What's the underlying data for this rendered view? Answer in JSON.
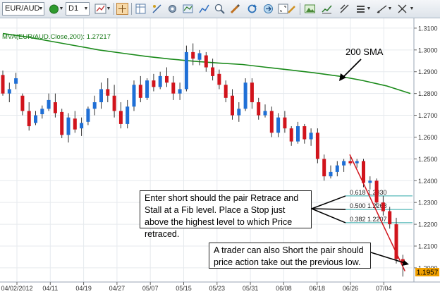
{
  "toolbar": {
    "symbol": "EUR/AUD",
    "timeframe": "D1",
    "icons": [
      "dropdown-icon",
      "status-dot-icon",
      "dropdown-icon",
      "dropdown-icon",
      "line-chart-icon",
      "dropdown-icon",
      "crosshair-icon",
      "table-icon",
      "draw-icon",
      "settings-icon",
      "overlay-icon",
      "reload-icon",
      "pencil-icon",
      "image-icon",
      "indicator-icon",
      "menu-icon",
      "trend-icon",
      "dropdown-icon"
    ]
  },
  "chart_data": {
    "type": "candlestick",
    "indicator_label": "MVA(EUR/AUD.Close,200): 1.27217",
    "y_ticks": [
      "1.3100",
      "1.3000",
      "1.2900",
      "1.2800",
      "1.2700",
      "1.2600",
      "1.2500",
      "1.2400",
      "1.2300",
      "1.2200",
      "1.2100",
      "1.2000"
    ],
    "ylim": [
      1.1935,
      1.3145
    ],
    "x_ticks": [
      "04/02/2012",
      "04/11",
      "04/19",
      "04/27",
      "05/07",
      "05/15",
      "05/23",
      "05/31",
      "06/08",
      "06/18",
      "06/26",
      "07/04"
    ],
    "current_price_label": "1.1957",
    "colors": {
      "up": "#1f6fd6",
      "down": "#d1141c",
      "sma": "#1a8a1a",
      "fib": "#2ca8a8",
      "trend": "#d1141c",
      "grid": "#e6eaee",
      "price_tag": "#f0a000"
    },
    "candles": [
      {
        "o": 1.2885,
        "h": 1.2905,
        "l": 1.279,
        "c": 1.28
      },
      {
        "o": 1.28,
        "h": 1.285,
        "l": 1.276,
        "c": 1.282
      },
      {
        "o": 1.2845,
        "h": 1.2895,
        "l": 1.282,
        "c": 1.287
      },
      {
        "o": 1.279,
        "h": 1.28,
        "l": 1.27,
        "c": 1.272
      },
      {
        "o": 1.272,
        "h": 1.276,
        "l": 1.263,
        "c": 1.265
      },
      {
        "o": 1.2665,
        "h": 1.272,
        "l": 1.2655,
        "c": 1.27
      },
      {
        "o": 1.2705,
        "h": 1.2745,
        "l": 1.2685,
        "c": 1.273
      },
      {
        "o": 1.273,
        "h": 1.28,
        "l": 1.272,
        "c": 1.277
      },
      {
        "o": 1.276,
        "h": 1.28,
        "l": 1.269,
        "c": 1.271
      },
      {
        "o": 1.2715,
        "h": 1.273,
        "l": 1.2595,
        "c": 1.261
      },
      {
        "o": 1.261,
        "h": 1.271,
        "l": 1.2575,
        "c": 1.269
      },
      {
        "o": 1.2685,
        "h": 1.272,
        "l": 1.262,
        "c": 1.2635
      },
      {
        "o": 1.264,
        "h": 1.269,
        "l": 1.2605,
        "c": 1.2665
      },
      {
        "o": 1.267,
        "h": 1.274,
        "l": 1.2655,
        "c": 1.273
      },
      {
        "o": 1.273,
        "h": 1.279,
        "l": 1.27,
        "c": 1.276
      },
      {
        "o": 1.276,
        "h": 1.285,
        "l": 1.273,
        "c": 1.282
      },
      {
        "o": 1.282,
        "h": 1.287,
        "l": 1.276,
        "c": 1.279
      },
      {
        "o": 1.279,
        "h": 1.284,
        "l": 1.269,
        "c": 1.272
      },
      {
        "o": 1.272,
        "h": 1.276,
        "l": 1.264,
        "c": 1.266
      },
      {
        "o": 1.266,
        "h": 1.277,
        "l": 1.264,
        "c": 1.274
      },
      {
        "o": 1.274,
        "h": 1.286,
        "l": 1.272,
        "c": 1.284
      },
      {
        "o": 1.284,
        "h": 1.288,
        "l": 1.276,
        "c": 1.278
      },
      {
        "o": 1.278,
        "h": 1.287,
        "l": 1.277,
        "c": 1.286
      },
      {
        "o": 1.286,
        "h": 1.289,
        "l": 1.281,
        "c": 1.283
      },
      {
        "o": 1.283,
        "h": 1.29,
        "l": 1.282,
        "c": 1.288
      },
      {
        "o": 1.288,
        "h": 1.292,
        "l": 1.283,
        "c": 1.285
      },
      {
        "o": 1.285,
        "h": 1.288,
        "l": 1.277,
        "c": 1.28
      },
      {
        "o": 1.28,
        "h": 1.285,
        "l": 1.277,
        "c": 1.282
      },
      {
        "o": 1.282,
        "h": 1.302,
        "l": 1.281,
        "c": 1.299
      },
      {
        "o": 1.299,
        "h": 1.303,
        "l": 1.293,
        "c": 1.296
      },
      {
        "o": 1.2955,
        "h": 1.3,
        "l": 1.293,
        "c": 1.2985
      },
      {
        "o": 1.2975,
        "h": 1.299,
        "l": 1.29,
        "c": 1.292
      },
      {
        "o": 1.292,
        "h": 1.296,
        "l": 1.286,
        "c": 1.288
      },
      {
        "o": 1.289,
        "h": 1.291,
        "l": 1.282,
        "c": 1.284
      },
      {
        "o": 1.284,
        "h": 1.286,
        "l": 1.276,
        "c": 1.278
      },
      {
        "o": 1.279,
        "h": 1.282,
        "l": 1.268,
        "c": 1.27
      },
      {
        "o": 1.27,
        "h": 1.276,
        "l": 1.267,
        "c": 1.273
      },
      {
        "o": 1.273,
        "h": 1.287,
        "l": 1.272,
        "c": 1.285
      },
      {
        "o": 1.285,
        "h": 1.287,
        "l": 1.273,
        "c": 1.276
      },
      {
        "o": 1.276,
        "h": 1.278,
        "l": 1.268,
        "c": 1.27
      },
      {
        "o": 1.27,
        "h": 1.275,
        "l": 1.269,
        "c": 1.272
      },
      {
        "o": 1.272,
        "h": 1.274,
        "l": 1.26,
        "c": 1.262
      },
      {
        "o": 1.262,
        "h": 1.271,
        "l": 1.26,
        "c": 1.269
      },
      {
        "o": 1.269,
        "h": 1.272,
        "l": 1.262,
        "c": 1.264
      },
      {
        "o": 1.264,
        "h": 1.265,
        "l": 1.256,
        "c": 1.258
      },
      {
        "o": 1.258,
        "h": 1.267,
        "l": 1.257,
        "c": 1.265
      },
      {
        "o": 1.265,
        "h": 1.266,
        "l": 1.257,
        "c": 1.259
      },
      {
        "o": 1.259,
        "h": 1.264,
        "l": 1.256,
        "c": 1.262
      },
      {
        "o": 1.262,
        "h": 1.264,
        "l": 1.248,
        "c": 1.25
      },
      {
        "o": 1.25,
        "h": 1.252,
        "l": 1.24,
        "c": 1.242
      },
      {
        "o": 1.242,
        "h": 1.247,
        "l": 1.241,
        "c": 1.244
      },
      {
        "o": 1.244,
        "h": 1.249,
        "l": 1.242,
        "c": 1.247
      },
      {
        "o": 1.247,
        "h": 1.25,
        "l": 1.244,
        "c": 1.249
      },
      {
        "o": 1.249,
        "h": 1.251,
        "l": 1.247,
        "c": 1.248
      },
      {
        "o": 1.248,
        "h": 1.25,
        "l": 1.246,
        "c": 1.249
      },
      {
        "o": 1.249,
        "h": 1.25,
        "l": 1.237,
        "c": 1.239
      },
      {
        "o": 1.239,
        "h": 1.242,
        "l": 1.236,
        "c": 1.24
      },
      {
        "o": 1.24,
        "h": 1.241,
        "l": 1.228,
        "c": 1.23
      },
      {
        "o": 1.23,
        "h": 1.233,
        "l": 1.224,
        "c": 1.226
      },
      {
        "o": 1.226,
        "h": 1.228,
        "l": 1.218,
        "c": 1.22
      },
      {
        "o": 1.22,
        "h": 1.223,
        "l": 1.202,
        "c": 1.204
      },
      {
        "o": 1.204,
        "h": 1.206,
        "l": 1.196,
        "c": 1.202
      }
    ],
    "sma": [
      1.3075,
      1.306,
      1.304,
      1.302,
      1.3,
      1.2985,
      1.297,
      1.2958,
      1.2948,
      1.294,
      1.2933,
      1.292,
      1.2908,
      1.2895,
      1.288,
      1.286,
      1.2835,
      1.28
    ],
    "fib_levels": [
      {
        "label": "0.618 1.2330",
        "value": 1.233
      },
      {
        "label": "0.500 1.2268",
        "value": 1.2268
      },
      {
        "label": "0.382 1.2207",
        "value": 1.2207
      }
    ],
    "annotations": {
      "sma_label": "200 SMA",
      "callout1": "Enter short should the pair Retrace and Stall at a Fib level.  Place a Stop just above the highest level to which Price retraced.",
      "callout2": "A trader can also Short the pair should price action take out the previous low."
    }
  }
}
